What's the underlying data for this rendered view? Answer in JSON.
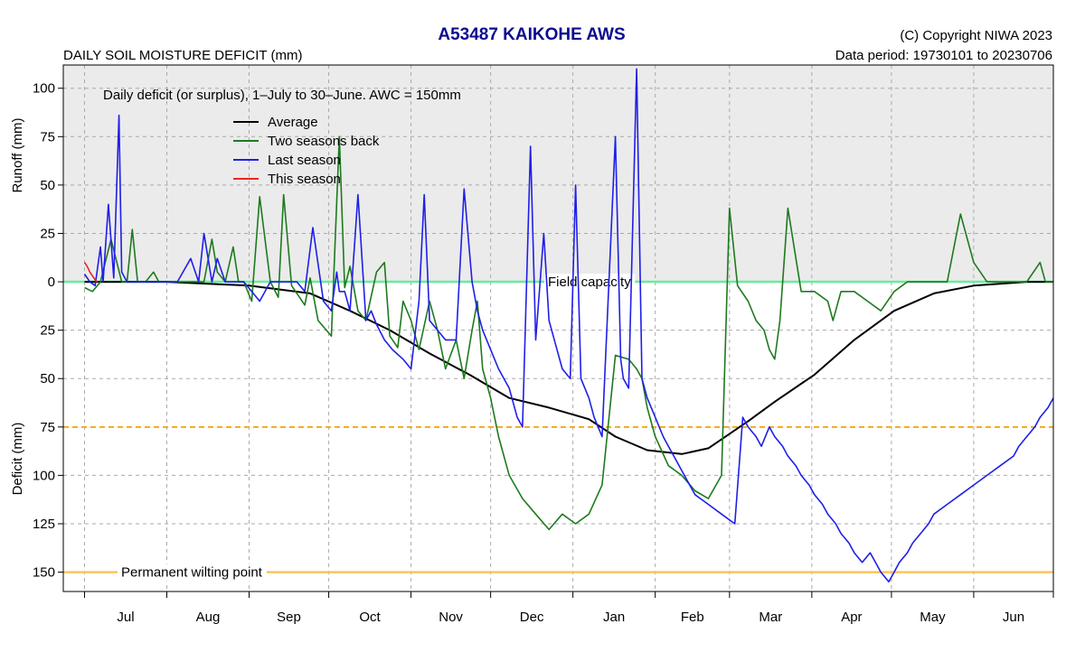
{
  "header": {
    "title": "A53487  KAIKOHE AWS",
    "subtitle": "DAILY SOIL MOISTURE DEFICIT (mm)",
    "copyright": "(C) Copyright NIWA  2023",
    "data_period": "Data period:  19730101  to  20230706"
  },
  "chart_data": {
    "type": "line",
    "title": "A53487  KAIKOHE AWS",
    "subtitle": "DAILY SOIL MOISTURE DEFICIT (mm)",
    "annotation": "Daily deficit (or surplus), 1–July to 30–June.  AWC = 150mm",
    "ylabel_top": "Runoff (mm)",
    "ylabel_bottom": "Deficit (mm)",
    "ylim": [
      -160,
      112
    ],
    "y_ticks": [
      100,
      75,
      50,
      25,
      0,
      -25,
      -50,
      -75,
      -100,
      -125,
      -150
    ],
    "y_tick_labels": [
      "100",
      "75",
      "50",
      "25",
      "0",
      "25",
      "50",
      "75",
      "100",
      "125",
      "150"
    ],
    "x_range": [
      -8,
      365
    ],
    "x_month_boundaries": [
      0,
      31,
      62,
      92,
      123,
      153,
      184,
      215,
      243,
      274,
      304,
      335,
      365
    ],
    "months": [
      "Jul",
      "Aug",
      "Sep",
      "Oct",
      "Nov",
      "Dec",
      "Jan",
      "Feb",
      "Mar",
      "Apr",
      "May",
      "Jun"
    ],
    "grid": true,
    "legend_position": "top-left",
    "reference_lines": [
      {
        "name": "Field capacity",
        "y": 0,
        "color": "#66ee99"
      },
      {
        "name": "",
        "y": -75,
        "color": "#f7a81b",
        "dashed": true
      },
      {
        "name": "Permanent wilting point",
        "y": -150,
        "color": "#f8c560"
      }
    ],
    "colors": {
      "panel_top": "#ebebeb",
      "grid": "#aaaaaa",
      "title": "#0b0b8f"
    },
    "series": [
      {
        "name": "Average",
        "color": "#000000",
        "x": [
          0,
          31,
          62,
          85,
          100,
          115,
          130,
          145,
          160,
          175,
          190,
          200,
          212,
          225,
          235,
          250,
          260,
          275,
          290,
          305,
          320,
          335,
          355,
          365
        ],
        "y": [
          0,
          0,
          -2,
          -6,
          -15,
          -25,
          -37,
          -48,
          -60,
          -65,
          -71,
          -80,
          -87,
          -89,
          -86,
          -72,
          -62,
          -48,
          -30,
          -15,
          -6,
          -2,
          0,
          0
        ]
      },
      {
        "name": "Two seasons back",
        "color": "#1e7a1e",
        "x": [
          0,
          3,
          6,
          10,
          14,
          16,
          18,
          20,
          23,
          26,
          28,
          30,
          33,
          36,
          40,
          45,
          48,
          50,
          53,
          56,
          58,
          60,
          63,
          66,
          70,
          73,
          75,
          78,
          83,
          85,
          88,
          93,
          96,
          98,
          100,
          103,
          106,
          110,
          113,
          115,
          118,
          120,
          123,
          126,
          130,
          133,
          136,
          140,
          143,
          146,
          148,
          150,
          153,
          156,
          160,
          165,
          170,
          175,
          180,
          185,
          190,
          195,
          200,
          205,
          208,
          210,
          212,
          215,
          220,
          225,
          230,
          235,
          240,
          243,
          246,
          250,
          253,
          256,
          258,
          260,
          262,
          265,
          270,
          275,
          280,
          282,
          285,
          287,
          290,
          295,
          300,
          305,
          310,
          315,
          320,
          325,
          330,
          335,
          340,
          345,
          350,
          355,
          360,
          362,
          365
        ],
        "y": [
          -3,
          -5,
          0,
          22,
          0,
          0,
          27,
          0,
          0,
          5,
          0,
          0,
          0,
          0,
          0,
          0,
          22,
          5,
          0,
          18,
          0,
          0,
          -10,
          44,
          0,
          -8,
          45,
          -2,
          -12,
          2,
          -20,
          -28,
          75,
          -3,
          8,
          -15,
          -20,
          5,
          10,
          -28,
          -34,
          -10,
          -20,
          -35,
          -10,
          -25,
          -45,
          -30,
          -50,
          -25,
          -10,
          -45,
          -60,
          -80,
          -100,
          -112,
          -120,
          -128,
          -120,
          -125,
          -120,
          -105,
          -38,
          -40,
          -45,
          -50,
          -65,
          -80,
          -95,
          -100,
          -108,
          -112,
          -100,
          38,
          -2,
          -10,
          -20,
          -25,
          -35,
          -40,
          -20,
          38,
          -5,
          -5,
          -10,
          -20,
          -5,
          -5,
          -5,
          -10,
          -15,
          -5,
          0,
          0,
          0,
          0,
          35,
          10,
          0,
          0,
          0,
          0,
          10,
          0,
          0
        ]
      },
      {
        "name": "Last season",
        "color": "#1f1fe8",
        "x": [
          0,
          2,
          4,
          6,
          7,
          9,
          11,
          13,
          14,
          16,
          20,
          23,
          26,
          30,
          35,
          40,
          43,
          45,
          48,
          50,
          53,
          56,
          60,
          63,
          66,
          70,
          75,
          80,
          83,
          86,
          90,
          93,
          95,
          96,
          98,
          100,
          103,
          106,
          108,
          110,
          113,
          116,
          120,
          123,
          126,
          128,
          130,
          133,
          136,
          140,
          143,
          146,
          148,
          150,
          153,
          156,
          160,
          163,
          165,
          168,
          170,
          173,
          175,
          180,
          183,
          185,
          187,
          190,
          192,
          195,
          200,
          202,
          203,
          205,
          208,
          210,
          212,
          215,
          218,
          220,
          222,
          224,
          226,
          228,
          230,
          235,
          240,
          245,
          248,
          250,
          253,
          255,
          258,
          260,
          263,
          265,
          268,
          270,
          273,
          275,
          278,
          280,
          283,
          285,
          288,
          290,
          293,
          296,
          298,
          300,
          303,
          305,
          307,
          310,
          312,
          315,
          318,
          320,
          325,
          330,
          335,
          340,
          345,
          350,
          352,
          355,
          358,
          360,
          363,
          365
        ],
        "y": [
          4,
          0,
          -2,
          18,
          0,
          40,
          2,
          86,
          5,
          0,
          0,
          0,
          0,
          0,
          0,
          12,
          0,
          25,
          0,
          12,
          0,
          0,
          0,
          -5,
          -10,
          0,
          0,
          0,
          -5,
          28,
          -10,
          -15,
          5,
          -5,
          -5,
          -15,
          45,
          -20,
          -15,
          -22,
          -30,
          -35,
          -40,
          -45,
          -10,
          45,
          -20,
          -25,
          -30,
          -30,
          48,
          0,
          -15,
          -25,
          -35,
          -45,
          -55,
          -70,
          -75,
          70,
          -30,
          25,
          -20,
          -45,
          -50,
          50,
          -50,
          -60,
          -70,
          -80,
          75,
          -40,
          -50,
          -55,
          110,
          -50,
          -60,
          -70,
          -80,
          -85,
          -90,
          -95,
          -100,
          -105,
          -110,
          -115,
          -120,
          -125,
          -70,
          -75,
          -80,
          -85,
          -75,
          -80,
          -85,
          -90,
          -95,
          -100,
          -105,
          -110,
          -115,
          -120,
          -125,
          -130,
          -135,
          -140,
          -145,
          -140,
          -145,
          -150,
          -155,
          -150,
          -145,
          -140,
          -135,
          -130,
          -125,
          -120,
          -115,
          -110,
          -105,
          -100,
          -95,
          -90,
          -85,
          -80,
          -75,
          -70,
          -65,
          -60
        ]
      },
      {
        "name": "This season",
        "color": "#ee2222",
        "x": [
          0,
          1,
          2,
          3,
          4,
          5
        ],
        "y": [
          10,
          8,
          5,
          3,
          1,
          0
        ]
      }
    ]
  }
}
